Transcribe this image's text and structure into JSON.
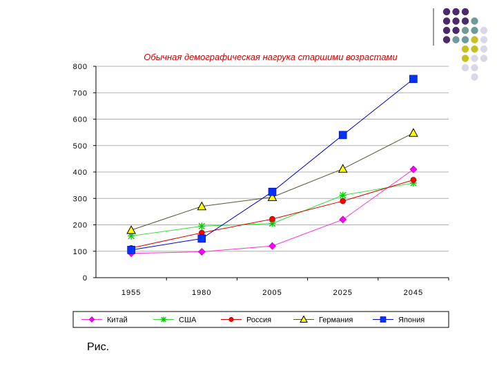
{
  "caption": "Рис.",
  "decoration": {
    "dot_colors": [
      "#4b2a6b",
      "#6f9a9a",
      "#c8c020",
      "#d8d8e8"
    ]
  },
  "chart_data": {
    "type": "line",
    "title": "Обычная демографическая нагрука старшими возрастами",
    "categories": [
      "1955",
      "1980",
      "2005",
      "2025",
      "2045"
    ],
    "ylim": [
      0,
      800
    ],
    "yticks": [
      "0",
      "100",
      "200",
      "300",
      "400",
      "500",
      "600",
      "700",
      "800"
    ],
    "grid": true,
    "legend_position": "bottom",
    "series": [
      {
        "name": "Китай",
        "marker": "diamond",
        "color": "#ff33cc",
        "marker_color": "#ff00ff",
        "values": [
          92,
          98,
          120,
          220,
          410
        ]
      },
      {
        "name": "США",
        "marker": "star",
        "color": "#33dd33",
        "marker_color": "#00cc00",
        "values": [
          158,
          195,
          205,
          312,
          358
        ]
      },
      {
        "name": "Россия",
        "marker": "circle",
        "color": "#dd0000",
        "marker_color": "#ff0000",
        "values": [
          112,
          170,
          222,
          290,
          370
        ]
      },
      {
        "name": "Германия",
        "marker": "triangle",
        "color": "#555533",
        "marker_color": "#ffff00",
        "values": [
          180,
          270,
          305,
          412,
          548
        ]
      },
      {
        "name": "Япония",
        "marker": "square",
        "color": "#0000cc",
        "marker_color": "#0033ff",
        "values": [
          105,
          148,
          325,
          540,
          752
        ]
      }
    ]
  }
}
